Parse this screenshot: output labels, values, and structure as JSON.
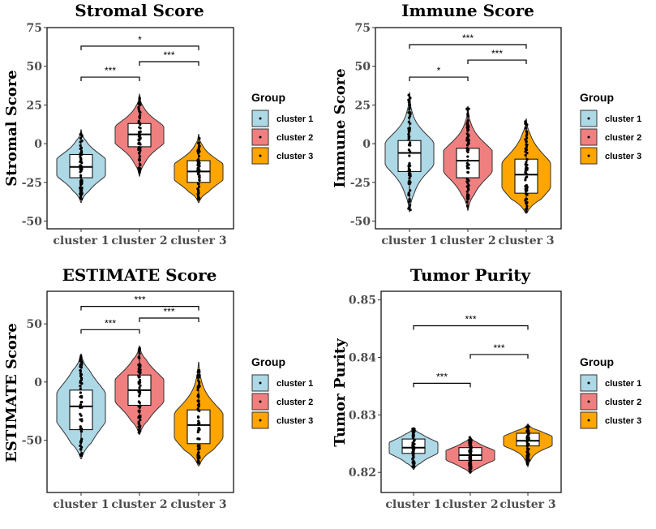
{
  "chart_data": [
    {
      "type": "violin",
      "title": "Stromal Score",
      "ylabel": "Stromal Score",
      "xlabel": "",
      "ylim": [
        -55,
        75
      ],
      "yticks": [
        -50,
        -25,
        0,
        25,
        50,
        75
      ],
      "categories": [
        "cluster 1",
        "cluster 2",
        "cluster 3"
      ],
      "series": [
        {
          "name": "cluster 1",
          "min": -38,
          "q1": -22,
          "median": -15,
          "q3": -7,
          "max": 9,
          "whisker_low": -36,
          "whisker_high": 8
        },
        {
          "name": "cluster 2",
          "min": -21,
          "q1": -2,
          "median": 6,
          "q3": 13,
          "max": 32,
          "whisker_low": -20,
          "whisker_high": 31
        },
        {
          "name": "cluster 3",
          "min": -38,
          "q1": -25,
          "median": -18,
          "q3": -11,
          "max": 6,
          "whisker_low": -36,
          "whisker_high": 5
        }
      ],
      "comparisons": [
        {
          "groups": [
            "cluster 1",
            "cluster 2"
          ],
          "label": "***",
          "y": 43
        },
        {
          "groups": [
            "cluster 2",
            "cluster 3"
          ],
          "label": "***",
          "y": 53
        },
        {
          "groups": [
            "cluster 1",
            "cluster 3"
          ],
          "label": "*",
          "y": 63
        }
      ],
      "legend": {
        "title": "Group",
        "position": "right"
      }
    },
    {
      "type": "violin",
      "title": "Immune Score",
      "ylabel": "Immune Score",
      "xlabel": "",
      "ylim": [
        -55,
        75
      ],
      "yticks": [
        -50,
        -25,
        0,
        25,
        50,
        75
      ],
      "categories": [
        "cluster 1",
        "cluster 2",
        "cluster 3"
      ],
      "series": [
        {
          "name": "cluster 1",
          "min": -44,
          "q1": -18,
          "median": -6,
          "q3": 2,
          "max": 33,
          "whisker_low": -43,
          "whisker_high": 32
        },
        {
          "name": "cluster 2",
          "min": -43,
          "q1": -22,
          "median": -11,
          "q3": -3,
          "max": 24,
          "whisker_low": -42,
          "whisker_high": 24
        },
        {
          "name": "cluster 3",
          "min": -45,
          "q1": -32,
          "median": -20,
          "q3": -10,
          "max": 16,
          "whisker_low": -44,
          "whisker_high": 15
        }
      ],
      "comparisons": [
        {
          "groups": [
            "cluster 1",
            "cluster 2"
          ],
          "label": "*",
          "y": 43
        },
        {
          "groups": [
            "cluster 2",
            "cluster 3"
          ],
          "label": "***",
          "y": 54
        },
        {
          "groups": [
            "cluster 1",
            "cluster 3"
          ],
          "label": "***",
          "y": 64
        }
      ],
      "legend": {
        "title": "Group",
        "position": "right"
      }
    },
    {
      "type": "violin",
      "title": "ESTIMATE Score",
      "ylabel": "ESTIMATE Score",
      "xlabel": "",
      "ylim": [
        -95,
        78
      ],
      "yticks": [
        -50,
        0,
        50
      ],
      "categories": [
        "cluster 1",
        "cluster 2",
        "cluster 3"
      ],
      "series": [
        {
          "name": "cluster 1",
          "min": -66,
          "q1": -41,
          "median": -21,
          "q3": -7,
          "max": 24,
          "whisker_low": -64,
          "whisker_high": 23
        },
        {
          "name": "cluster 2",
          "min": -45,
          "q1": -20,
          "median": -7,
          "q3": 6,
          "max": 31,
          "whisker_low": -44,
          "whisker_high": 30
        },
        {
          "name": "cluster 3",
          "min": -72,
          "q1": -53,
          "median": -37,
          "q3": -24,
          "max": 17,
          "whisker_low": -70,
          "whisker_high": 11
        }
      ],
      "comparisons": [
        {
          "groups": [
            "cluster 1",
            "cluster 2"
          ],
          "label": "***",
          "y": 45
        },
        {
          "groups": [
            "cluster 2",
            "cluster 3"
          ],
          "label": "***",
          "y": 55
        },
        {
          "groups": [
            "cluster 1",
            "cluster 3"
          ],
          "label": "***",
          "y": 65
        }
      ],
      "legend": {
        "title": "Group",
        "position": "right"
      }
    },
    {
      "type": "violin",
      "title": "Tumor Purity",
      "ylabel": "Tumor Purity",
      "xlabel": "",
      "ylim": [
        0.8165,
        0.8515
      ],
      "yticks": [
        0.82,
        0.83,
        0.84,
        0.85
      ],
      "ytick_labels": [
        "0.82",
        "0.83",
        "0.84",
        "0.85"
      ],
      "categories": [
        "cluster 1",
        "cluster 2",
        "cluster 3"
      ],
      "series": [
        {
          "name": "cluster 1",
          "min": 0.8205,
          "q1": 0.8233,
          "median": 0.8243,
          "q3": 0.8258,
          "max": 0.8278,
          "whisker_low": 0.8207,
          "whisker_high": 0.8276
        },
        {
          "name": "cluster 2",
          "min": 0.8198,
          "q1": 0.8221,
          "median": 0.823,
          "q3": 0.8243,
          "max": 0.8262,
          "whisker_low": 0.82,
          "whisker_high": 0.8261
        },
        {
          "name": "cluster 3",
          "min": 0.821,
          "q1": 0.8246,
          "median": 0.8255,
          "q3": 0.8268,
          "max": 0.8284,
          "whisker_low": 0.8214,
          "whisker_high": 0.8283
        }
      ],
      "comparisons": [
        {
          "groups": [
            "cluster 1",
            "cluster 2"
          ],
          "label": "***",
          "y": 0.8355
        },
        {
          "groups": [
            "cluster 2",
            "cluster 3"
          ],
          "label": "***",
          "y": 0.8405
        },
        {
          "groups": [
            "cluster 1",
            "cluster 3"
          ],
          "label": "***",
          "y": 0.8455
        }
      ],
      "legend": {
        "title": "Group",
        "position": "right"
      }
    }
  ],
  "colors": {
    "cluster 1": "#add8e6",
    "cluster 2": "#f08080",
    "cluster 3": "#ffa500"
  },
  "legend_items": [
    "cluster 1",
    "cluster 2",
    "cluster 3"
  ],
  "legend_title": "Group"
}
